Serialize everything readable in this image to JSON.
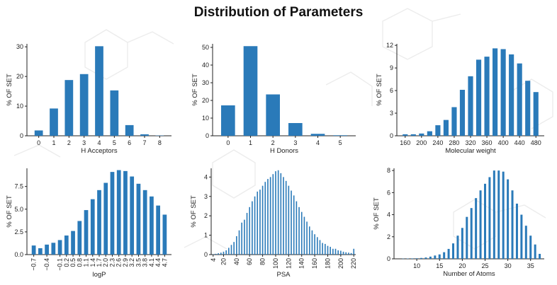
{
  "title": "Distribution of Parameters",
  "colors": {
    "bar": "#2a7ab9",
    "axis": "#222222",
    "background_motif": "#ececec"
  },
  "chart_data": [
    {
      "type": "bar",
      "xlabel": "H Acceptors",
      "ylabel": "% OF SET",
      "categories": [
        "0",
        "1",
        "2",
        "3",
        "4",
        "5",
        "6",
        "7",
        "8"
      ],
      "x_tick_labels": [
        "0",
        "1",
        "2",
        "3",
        "4",
        "5",
        "6",
        "7",
        "8"
      ],
      "values": [
        1.8,
        9.2,
        18.8,
        20.8,
        30.2,
        15.3,
        3.6,
        0.5,
        0.1
      ],
      "ylim": [
        0,
        31
      ],
      "yticks": [
        0,
        10,
        20,
        30
      ],
      "y_tick_labels": [
        "0",
        "10",
        "20",
        "30"
      ]
    },
    {
      "type": "bar",
      "xlabel": "H Donors",
      "ylabel": "% OF SET",
      "categories": [
        "0",
        "1",
        "2",
        "3",
        "4",
        "5"
      ],
      "x_tick_labels": [
        "0",
        "1",
        "2",
        "3",
        "4",
        "5"
      ],
      "values": [
        17.2,
        50.7,
        23.4,
        7.2,
        1.1,
        0.3
      ],
      "ylim": [
        0,
        52
      ],
      "yticks": [
        0,
        10,
        20,
        30,
        40,
        50
      ],
      "y_tick_labels": [
        "0",
        "10",
        "20",
        "30",
        "40",
        "50"
      ]
    },
    {
      "type": "bar",
      "xlabel": "Molecular weight",
      "ylabel": "% OF SET",
      "categories": [
        "160",
        "180",
        "200",
        "220",
        "240",
        "260",
        "280",
        "300",
        "320",
        "340",
        "360",
        "380",
        "400",
        "420",
        "440",
        "460",
        "480"
      ],
      "x_tick_labels": [
        "160",
        "200",
        "240",
        "280",
        "320",
        "360",
        "400",
        "440",
        "480"
      ],
      "values": [
        0.2,
        0.2,
        0.3,
        0.6,
        1.4,
        2.1,
        3.8,
        6.1,
        7.9,
        10.1,
        10.5,
        11.6,
        11.5,
        10.8,
        9.6,
        7.3,
        5.8
      ],
      "ylim": [
        0,
        12.2
      ],
      "yticks": [
        0,
        3,
        6,
        9,
        12
      ],
      "y_tick_labels": [
        "0",
        "3",
        "6",
        "9",
        "12"
      ]
    },
    {
      "type": "bar",
      "xlabel": "logP",
      "ylabel": "% OF SET",
      "categories": [
        "-0.7",
        "-0.55",
        "-0.4",
        "-0.25",
        "-0.1",
        "0.2",
        "0.5",
        "0.8",
        "1.1",
        "1.4",
        "1.7",
        "2.0",
        "2.3",
        "2.6",
        "2.9",
        "3.2",
        "3.5",
        "3.8",
        "4.1",
        "4.4",
        "4.7"
      ],
      "x_tick_labels": [
        "-0.7",
        "-0.4",
        "-0.1",
        "0.2",
        "0.5",
        "0.8",
        "1.1",
        "1.4",
        "1.7",
        "2.0",
        "2.3",
        "2.6",
        "2.9",
        "3.2",
        "3.5",
        "3.8",
        "4.1",
        "4.4",
        "4.7"
      ],
      "values": [
        1.0,
        0.7,
        1.1,
        1.3,
        1.6,
        2.1,
        2.6,
        3.7,
        4.9,
        6.1,
        7.1,
        7.9,
        9.1,
        9.3,
        9.2,
        8.6,
        7.8,
        7.1,
        6.4,
        5.4,
        4.4
      ],
      "ylim": [
        0,
        9.5
      ],
      "yticks": [
        0,
        2.5,
        5,
        7.5
      ],
      "y_tick_labels": [
        "0.0",
        "2.5",
        "5.0",
        "7.5"
      ]
    },
    {
      "type": "bar",
      "xlabel": "PSA",
      "ylabel": "% OF SET",
      "x": [
        4,
        8,
        12,
        16,
        20,
        24,
        28,
        32,
        36,
        40,
        44,
        48,
        52,
        56,
        60,
        64,
        68,
        72,
        76,
        80,
        84,
        88,
        92,
        96,
        100,
        104,
        108,
        112,
        116,
        120,
        124,
        128,
        132,
        136,
        140,
        144,
        148,
        152,
        156,
        160,
        164,
        168,
        172,
        176,
        180,
        184,
        188,
        192,
        196,
        200,
        204,
        208,
        212,
        216,
        220
      ],
      "values": [
        0.02,
        0.04,
        0.07,
        0.1,
        0.15,
        0.22,
        0.35,
        0.5,
        0.65,
        0.95,
        1.25,
        1.65,
        1.8,
        2.15,
        2.45,
        2.75,
        3.0,
        3.25,
        3.35,
        3.55,
        3.75,
        3.9,
        4.0,
        4.15,
        4.3,
        4.35,
        4.2,
        4.0,
        3.8,
        3.55,
        3.3,
        3.05,
        2.75,
        2.45,
        2.2,
        1.95,
        1.7,
        1.45,
        1.25,
        1.05,
        0.9,
        0.75,
        0.6,
        0.55,
        0.45,
        0.4,
        0.3,
        0.3,
        0.22,
        0.2,
        0.15,
        0.12,
        0.1,
        0.08,
        0.3
      ],
      "x_tick_labels": [
        "4",
        "20",
        "40",
        "60",
        "80",
        "100",
        "120",
        "140",
        "160",
        "180",
        "200",
        "220"
      ],
      "xticks": [
        4,
        20,
        40,
        60,
        80,
        100,
        120,
        140,
        160,
        180,
        200,
        220
      ],
      "ylim": [
        0,
        4.45
      ],
      "yticks": [
        0,
        1,
        2,
        3,
        4
      ],
      "y_tick_labels": [
        "0",
        "1",
        "2",
        "3",
        "4"
      ]
    },
    {
      "type": "bar",
      "xlabel": "Number of Atoms",
      "ylabel": "% OF SET",
      "x": [
        7,
        8,
        9,
        10,
        11,
        12,
        13,
        14,
        15,
        16,
        17,
        18,
        19,
        20,
        21,
        22,
        23,
        24,
        25,
        26,
        27,
        28,
        29,
        30,
        31,
        32,
        33,
        34,
        35,
        36,
        37
      ],
      "values": [
        0.02,
        0.03,
        0.04,
        0.05,
        0.08,
        0.12,
        0.2,
        0.3,
        0.4,
        0.6,
        0.9,
        1.4,
        2.1,
        2.8,
        3.8,
        4.6,
        5.5,
        6.2,
        6.8,
        7.4,
        8.0,
        8.0,
        7.9,
        7.2,
        6.2,
        5.0,
        4.0,
        3.0,
        2.1,
        1.3,
        0.45
      ],
      "x_tick_labels": [
        "10",
        "15",
        "20",
        "25",
        "30",
        "35"
      ],
      "xticks": [
        10,
        15,
        20,
        25,
        30,
        35
      ],
      "ylim": [
        0,
        8.2
      ],
      "yticks": [
        0,
        2,
        4,
        6,
        8
      ],
      "y_tick_labels": [
        "0",
        "2",
        "4",
        "6",
        "8"
      ]
    }
  ]
}
